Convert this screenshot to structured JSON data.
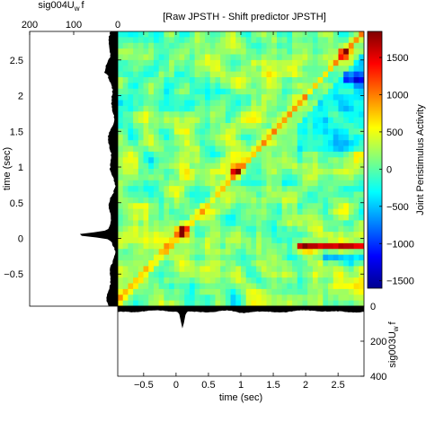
{
  "chart_data": {
    "type": "heatmap",
    "title": "[Raw JPSTH - Shift predictor JPSTH]",
    "xlabel": "time (sec)",
    "ylabel": "time (sec)",
    "xlim": [
      -0.9,
      2.9
    ],
    "ylim": [
      -0.95,
      2.9
    ],
    "x_ticks": [
      -0.5,
      0,
      0.5,
      1,
      1.5,
      2,
      2.5
    ],
    "x_tick_labels": [
      "−0.5",
      "0",
      "0.5",
      "1",
      "1.5",
      "2",
      "2.5"
    ],
    "y_ticks": [
      -0.5,
      0,
      0.5,
      1,
      1.5,
      2,
      2.5
    ],
    "y_tick_labels": [
      "−0.5",
      "0",
      "0.5",
      "1",
      "1.5",
      "2",
      "2.5"
    ],
    "colorbar": {
      "label": "Joint Peristimulus Activity",
      "range": [
        -1600,
        1850
      ],
      "ticks": [
        -1500,
        -1000,
        -500,
        0,
        500,
        1000,
        1500
      ],
      "tick_labels": [
        "−1500",
        "−1000",
        "−500",
        "0",
        "500",
        "1000",
        "1500"
      ],
      "colormap": "jet"
    },
    "diagonal_features": [
      {
        "t": 0.1,
        "value": 1800
      },
      {
        "t": 0.93,
        "value": 1500
      },
      {
        "t": 2.6,
        "value": 1600
      }
    ],
    "off_diagonal_features": [
      {
        "x_range": [
          1.9,
          2.9
        ],
        "y": -0.12,
        "value": 1500
      },
      {
        "x_range": [
          2.3,
          2.9
        ],
        "y": -0.3,
        "value": -900
      },
      {
        "x_range": [
          2.6,
          2.9
        ],
        "y": 2.25,
        "value": -1100
      }
    ],
    "left_histogram": {
      "label": "sig004U",
      "label_sub": "w",
      "label_tail": "f",
      "axis_ticks": [
        200,
        100,
        0
      ],
      "axis_tick_labels": [
        "200",
        "100",
        "0"
      ],
      "range": [
        0,
        200
      ],
      "peak": {
        "t": 0.05,
        "value": 85
      },
      "baseline": 15
    },
    "bottom_histogram": {
      "label": "sig003U",
      "label_sub": "w",
      "label_tail": "f",
      "axis_ticks": [
        0,
        200,
        400
      ],
      "axis_tick_labels": [
        "0",
        "200",
        "400"
      ],
      "range": [
        0,
        400
      ],
      "peak": {
        "t": 0.1,
        "value": 125
      },
      "baseline": 30
    }
  }
}
